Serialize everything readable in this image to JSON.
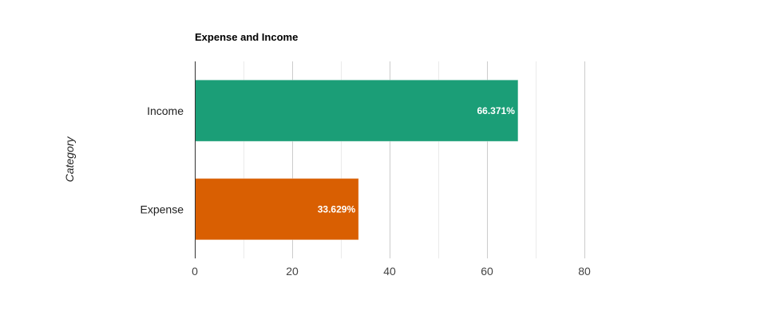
{
  "chart_data": {
    "type": "bar",
    "orientation": "horizontal",
    "title": "Expense and Income",
    "xlabel": "",
    "ylabel": "Category",
    "categories": [
      "Income",
      "Expense"
    ],
    "values": [
      66.371,
      33.629
    ],
    "data_labels": [
      "66.371%",
      "33.629%"
    ],
    "colors": [
      "#1b9e77",
      "#d95f02"
    ],
    "xlim": [
      0,
      80
    ],
    "xticks": [
      0,
      20,
      40,
      60,
      80
    ],
    "xtick_labels": [
      "0",
      "20",
      "40",
      "60",
      "80"
    ],
    "grid": true,
    "legend": "none"
  }
}
